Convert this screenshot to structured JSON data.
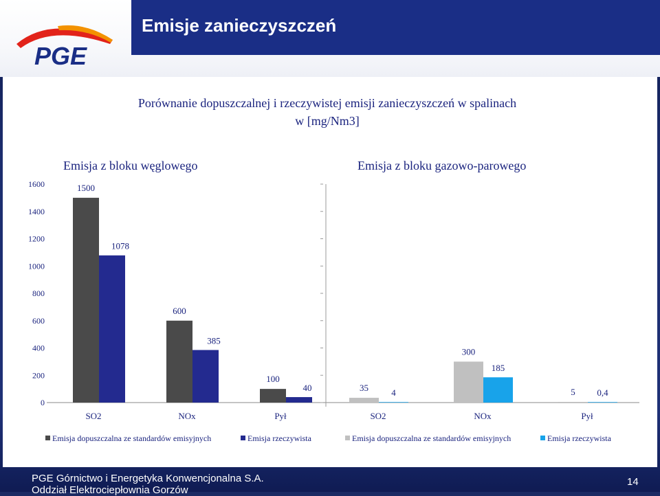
{
  "slide": {
    "title": "Emisje zanieczyszczeń",
    "logo_text": "PGE",
    "heading_line1": "Porównanie dopuszczalnej i rzeczywistej  emisji zanieczyszczeń w spalinach",
    "heading_line2": "w  [mg/Nm3]"
  },
  "footer": {
    "company": "PGE Górnictwo i Energetyka  Konwencjonalna S.A.",
    "division": "Oddział Elektrociepłownia Gorzów",
    "page_number": "14"
  },
  "colors": {
    "dark_gray": "#4a4a4a",
    "navy": "#232a8f",
    "light_gray": "#c0c0c0",
    "light_blue": "#18a3ea",
    "brand_red": "#e2231a",
    "brand_orange": "#f39200",
    "text_navy": "#1a237e"
  },
  "chart_data": [
    {
      "type": "bar",
      "title": "Emisja z bloku węglowego",
      "categories": [
        "SO2",
        "NOx",
        "Pył"
      ],
      "series": [
        {
          "name": "Emisja dopuszczalna ze standardów emisyjnych",
          "values": [
            1500,
            600,
            100
          ],
          "labels": [
            "1500",
            "600",
            "100"
          ],
          "color": "#4a4a4a"
        },
        {
          "name": "Emisja rzeczywista",
          "values": [
            1078,
            385,
            40
          ],
          "labels": [
            "1078",
            "385",
            "40"
          ],
          "color": "#232a8f"
        }
      ],
      "ylim": [
        0,
        1600
      ],
      "yticks": [
        "0",
        "200",
        "400",
        "600",
        "800",
        "1000",
        "1200",
        "1400",
        "1600"
      ],
      "grid": false,
      "legend": "bottom"
    },
    {
      "type": "bar",
      "title": "Emisja z bloku gazowo-parowego",
      "categories": [
        "SO2",
        "NOx",
        "Pył"
      ],
      "series": [
        {
          "name": "Emisja dopuszczalna ze standardów emisyjnych",
          "values": [
            35,
            300,
            5
          ],
          "labels": [
            "35",
            "300",
            "5"
          ],
          "color": "#c0c0c0"
        },
        {
          "name": "Emisja rzeczywista",
          "values": [
            4,
            185,
            0.4
          ],
          "labels": [
            "4",
            "185",
            "0,4"
          ],
          "color": "#18a3ea"
        }
      ],
      "ylim": [
        0,
        400
      ],
      "grid": false,
      "legend": "bottom"
    }
  ]
}
